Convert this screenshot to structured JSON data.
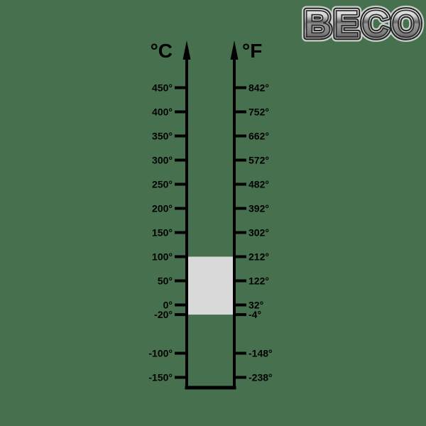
{
  "background_color": "#47704f",
  "logo": {
    "text": "BECO"
  },
  "chart_data": {
    "type": "table",
    "description": "Dual vertical temperature conversion scale",
    "left_axis": {
      "unit_label": "°C",
      "min": -150,
      "max": 450
    },
    "right_axis": {
      "unit_label": "°F",
      "min": -238,
      "max": 842
    },
    "pairs": [
      {
        "celsius": 450,
        "fahrenheit": 842,
        "c_label": "450°",
        "f_label": "842°"
      },
      {
        "celsius": 400,
        "fahrenheit": 752,
        "c_label": "400°",
        "f_label": "752°"
      },
      {
        "celsius": 350,
        "fahrenheit": 662,
        "c_label": "350°",
        "f_label": "662°"
      },
      {
        "celsius": 300,
        "fahrenheit": 572,
        "c_label": "300°",
        "f_label": "572°"
      },
      {
        "celsius": 250,
        "fahrenheit": 482,
        "c_label": "250°",
        "f_label": "482°"
      },
      {
        "celsius": 200,
        "fahrenheit": 392,
        "c_label": "200°",
        "f_label": "392°"
      },
      {
        "celsius": 150,
        "fahrenheit": 302,
        "c_label": "150°",
        "f_label": "302°"
      },
      {
        "celsius": 100,
        "fahrenheit": 212,
        "c_label": "100°",
        "f_label": "212°"
      },
      {
        "celsius": 50,
        "fahrenheit": 122,
        "c_label": "50°",
        "f_label": "122°"
      },
      {
        "celsius": 0,
        "fahrenheit": 32,
        "c_label": "0°",
        "f_label": "32°"
      },
      {
        "celsius": -20,
        "fahrenheit": -4,
        "c_label": "-20°",
        "f_label": "-4°"
      },
      {
        "celsius": -100,
        "fahrenheit": -148,
        "c_label": "-100°",
        "f_label": "-148°"
      },
      {
        "celsius": -150,
        "fahrenheit": -238,
        "c_label": "-150°",
        "f_label": "-238°"
      }
    ],
    "highlight_range": {
      "from_celsius": 100,
      "to_celsius": -20,
      "color": "#d9d9d9"
    },
    "line_color": "#000000",
    "label_color": "#000000"
  }
}
